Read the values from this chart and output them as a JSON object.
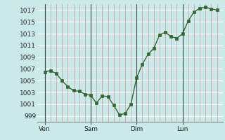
{
  "bg_color": "#cce9e9",
  "grid_white": "#ffffff",
  "grid_pink": "#cc9999",
  "line_color": "#336633",
  "marker_color": "#336633",
  "ylim": [
    998,
    1018
  ],
  "yticks": [
    999,
    1001,
    1003,
    1005,
    1007,
    1009,
    1011,
    1013,
    1015,
    1017
  ],
  "day_labels": [
    "Ven",
    "Sam",
    "Dim",
    "Lun"
  ],
  "day_positions": [
    0,
    24,
    48,
    72
  ],
  "xlim": [
    -4,
    93
  ],
  "x": [
    0,
    3,
    6,
    9,
    12,
    15,
    18,
    21,
    24,
    27,
    30,
    33,
    36,
    39,
    42,
    45,
    48,
    51,
    54,
    57,
    60,
    63,
    66,
    69,
    72,
    75,
    78,
    81,
    84,
    87,
    90
  ],
  "y": [
    1006.5,
    1006.7,
    1006.2,
    1005.0,
    1004.0,
    1003.3,
    1003.2,
    1002.7,
    1002.5,
    1001.2,
    1002.4,
    1002.3,
    1000.8,
    999.2,
    999.4,
    1001.0,
    1005.5,
    1007.8,
    1009.5,
    1010.5,
    1012.8,
    1013.2,
    1012.5,
    1012.2,
    1013.0,
    1015.2,
    1016.7,
    1017.3,
    1017.5,
    1017.2,
    1017.0
  ],
  "spine_color": "#888888",
  "tick_color": "#555555",
  "label_fontsize": 6.5,
  "day_line_color": "#444444"
}
